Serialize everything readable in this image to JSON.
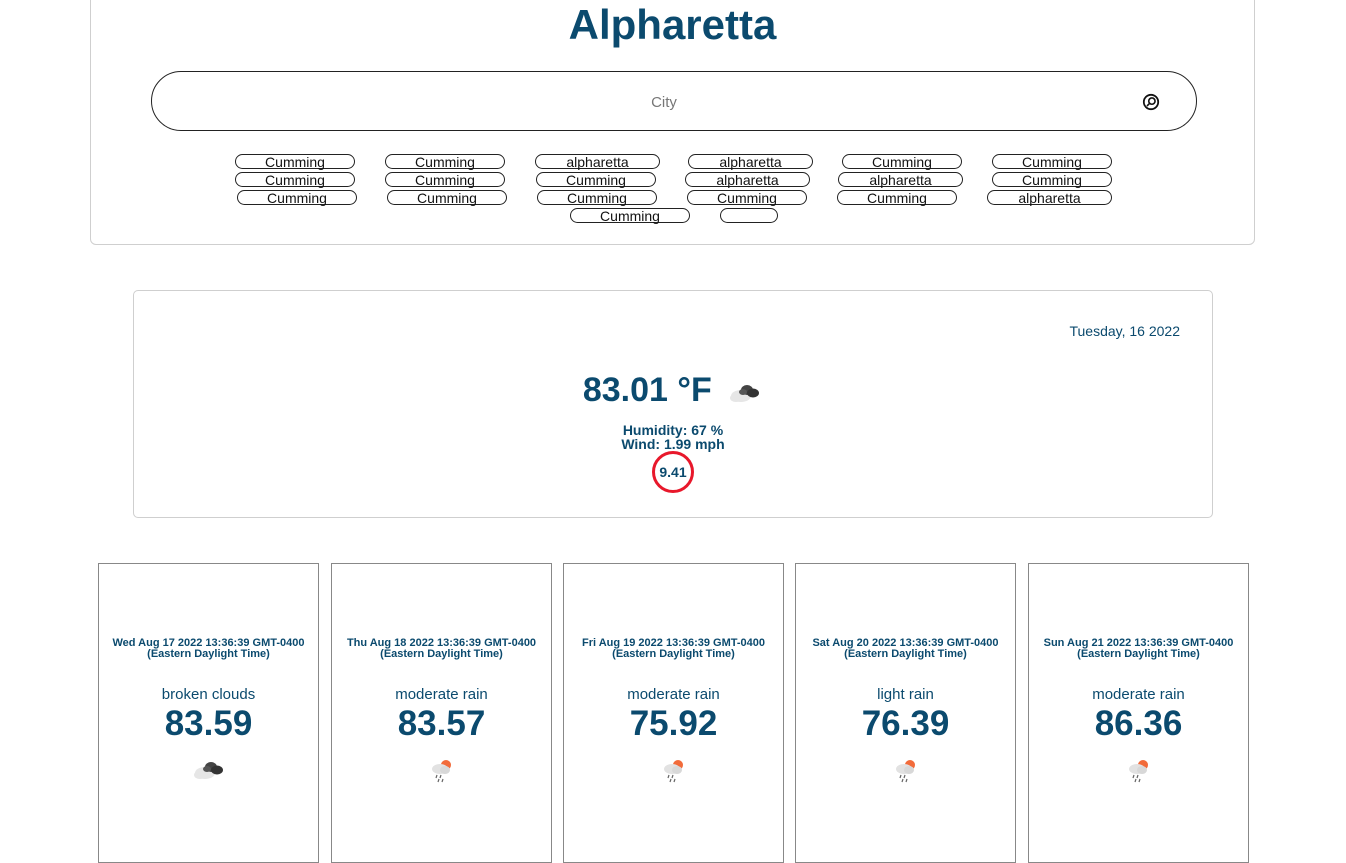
{
  "header": {
    "city_title": "Alpharetta",
    "search_placeholder": "City",
    "search_value": ""
  },
  "history": [
    "Cumming",
    "Cumming",
    "alpharetta",
    "alpharetta",
    "Cumming",
    "Cumming",
    "Cumming",
    "Cumming",
    "Cumming",
    "alpharetta",
    "alpharetta",
    "Cumming",
    "Cumming",
    "Cumming",
    "Cumming",
    "Cumming",
    "Cumming",
    "alpharetta",
    "Cumming",
    ""
  ],
  "current": {
    "date": "Tuesday, 16 2022",
    "temperature": "83.01 °F",
    "icon": "broken-clouds-icon",
    "humidity": "Humidity: 67 %",
    "wind": "Wind: 1.99 mph",
    "uv_index": "9.41",
    "uv_color": "#e8182b"
  },
  "forecast": [
    {
      "date": "Wed Aug 17 2022 13:36:39 GMT-0400 (Eastern Daylight Time)",
      "description": "broken clouds",
      "temp": "83.59",
      "icon": "broken-clouds-icon"
    },
    {
      "date": "Thu Aug 18 2022 13:36:39 GMT-0400 (Eastern Daylight Time)",
      "description": "moderate rain",
      "temp": "83.57",
      "icon": "rain-icon"
    },
    {
      "date": "Fri Aug 19 2022 13:36:39 GMT-0400 (Eastern Daylight Time)",
      "description": "moderate rain",
      "temp": "75.92",
      "icon": "rain-icon"
    },
    {
      "date": "Sat Aug 20 2022 13:36:39 GMT-0400 (Eastern Daylight Time)",
      "description": "light rain",
      "temp": "76.39",
      "icon": "rain-icon"
    },
    {
      "date": "Sun Aug 21 2022 13:36:39 GMT-0400 (Eastern Daylight Time)",
      "description": "moderate rain",
      "temp": "86.36",
      "icon": "rain-icon"
    }
  ],
  "colors": {
    "primary_text": "#0b4a6e",
    "border": "#cfcfcf"
  }
}
